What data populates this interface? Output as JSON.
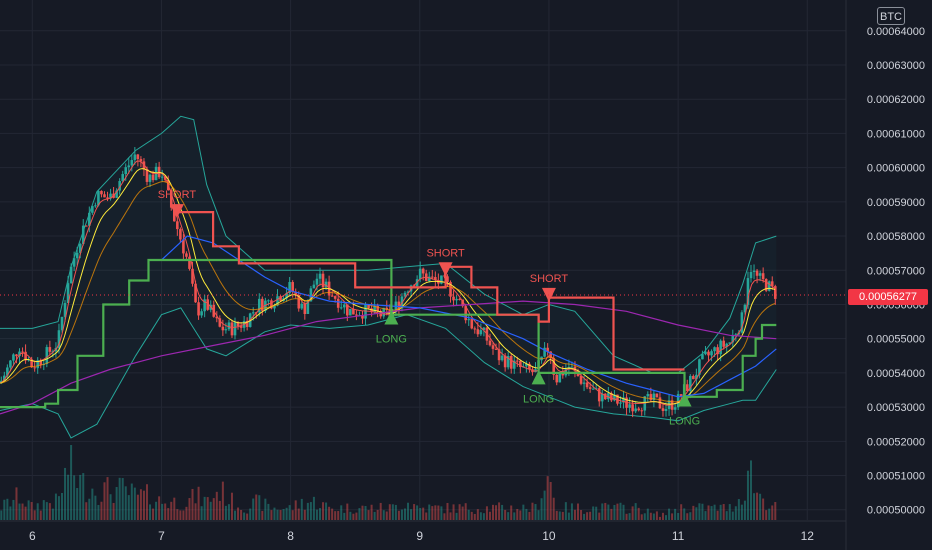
{
  "chart_data": {
    "type": "candlestick",
    "currency": "BTC",
    "last_price": "0.00056277",
    "y_ticks": [
      "0.00064000",
      "0.00063000",
      "0.00062000",
      "0.00061000",
      "0.00060000",
      "0.00059000",
      "0.00058000",
      "0.00057000",
      "0.00056000",
      "0.00055000",
      "0.00054000",
      "0.00053000",
      "0.00052000",
      "0.00051000",
      "0.00050000"
    ],
    "x_ticks": [
      "6",
      "7",
      "8",
      "9",
      "10",
      "11",
      "12"
    ],
    "ylim": [
      0.000497,
      0.000649
    ],
    "xlim": [
      5.75,
      12.3
    ],
    "annotations": [
      {
        "label": "SHORT",
        "kind": "short",
        "x": 7.12,
        "y": 0.000587
      },
      {
        "label": "LONG",
        "kind": "long",
        "x": 8.78,
        "y": 0.0005565
      },
      {
        "label": "SHORT",
        "kind": "short",
        "x": 9.2,
        "y": 0.00057
      },
      {
        "label": "LONG",
        "kind": "long",
        "x": 9.92,
        "y": 0.000539
      },
      {
        "label": "SHORT",
        "kind": "short",
        "x": 10.0,
        "y": 0.0005625
      },
      {
        "label": "LONG",
        "kind": "long",
        "x": 11.05,
        "y": 0.0005325
      }
    ],
    "series": [
      {
        "kind": "close",
        "values": [
          [
            5.75,
            0.000537
          ],
          [
            5.9,
            0.000548
          ],
          [
            6.0,
            0.000542
          ],
          [
            6.1,
            0.000545
          ],
          [
            6.2,
            0.000549
          ],
          [
            6.28,
            0.000568
          ],
          [
            6.38,
            0.000581
          ],
          [
            6.5,
            0.000592
          ],
          [
            6.6,
            0.000591
          ],
          [
            6.7,
            0.000598
          ],
          [
            6.8,
            0.000604
          ],
          [
            6.9,
            0.000597
          ],
          [
            7.0,
            0.000599
          ],
          [
            7.1,
            0.000585
          ],
          [
            7.2,
            0.000573
          ],
          [
            7.27,
            0.000558
          ],
          [
            7.35,
            0.00056
          ],
          [
            7.45,
            0.000553
          ],
          [
            7.55,
            0.000553
          ],
          [
            7.65,
            0.000555
          ],
          [
            7.75,
            0.00056
          ],
          [
            7.85,
            0.000561
          ],
          [
            8.0,
            0.000565
          ],
          [
            8.1,
            0.000558
          ],
          [
            8.2,
            0.000568
          ],
          [
            8.3,
            0.000564
          ],
          [
            8.45,
            0.000558
          ],
          [
            8.6,
            0.000558
          ],
          [
            8.7,
            0.000557
          ],
          [
            8.78,
            0.000557
          ],
          [
            8.9,
            0.000565
          ],
          [
            9.0,
            0.000569
          ],
          [
            9.1,
            0.000567
          ],
          [
            9.2,
            0.000566
          ],
          [
            9.3,
            0.000561
          ],
          [
            9.4,
            0.000554
          ],
          [
            9.5,
            0.000551
          ],
          [
            9.6,
            0.000545
          ],
          [
            9.7,
            0.000543
          ],
          [
            9.8,
            0.000541
          ],
          [
            9.9,
            0.00054
          ],
          [
            10.0,
            0.000548
          ],
          [
            10.05,
            0.000538
          ],
          [
            10.15,
            0.000542
          ],
          [
            10.3,
            0.000536
          ],
          [
            10.4,
            0.000533
          ],
          [
            10.5,
            0.000532
          ],
          [
            10.6,
            0.000531
          ],
          [
            10.7,
            0.000531
          ],
          [
            10.8,
            0.000532
          ],
          [
            10.9,
            0.00053
          ],
          [
            11.0,
            0.000532
          ],
          [
            11.1,
            0.000538
          ],
          [
            11.2,
            0.000544
          ],
          [
            11.3,
            0.000547
          ],
          [
            11.4,
            0.000549
          ],
          [
            11.5,
            0.000556
          ],
          [
            11.55,
            0.000572
          ],
          [
            11.6,
            0.000568
          ],
          [
            11.68,
            0.000566
          ],
          [
            11.76,
            0.000563
          ]
        ]
      },
      {
        "kind": "volume",
        "values": [
          [
            5.75,
            2
          ],
          [
            5.9,
            4
          ],
          [
            6.0,
            2
          ],
          [
            6.1,
            3
          ],
          [
            6.2,
            3
          ],
          [
            6.28,
            9
          ],
          [
            6.38,
            6
          ],
          [
            6.5,
            5
          ],
          [
            6.6,
            5
          ],
          [
            6.7,
            5
          ],
          [
            6.8,
            4
          ],
          [
            6.9,
            4
          ],
          [
            7.0,
            3
          ],
          [
            7.1,
            3
          ],
          [
            7.2,
            3
          ],
          [
            7.27,
            4
          ],
          [
            7.35,
            3
          ],
          [
            7.45,
            5
          ],
          [
            7.55,
            3
          ],
          [
            7.65,
            2
          ],
          [
            7.75,
            3
          ],
          [
            7.85,
            2
          ],
          [
            8.0,
            2
          ],
          [
            8.1,
            3
          ],
          [
            8.2,
            3
          ],
          [
            8.3,
            2
          ],
          [
            8.45,
            2
          ],
          [
            8.6,
            2
          ],
          [
            8.7,
            2
          ],
          [
            8.78,
            2
          ],
          [
            8.9,
            3
          ],
          [
            9.0,
            2
          ],
          [
            9.1,
            2
          ],
          [
            9.2,
            2
          ],
          [
            9.3,
            2
          ],
          [
            9.4,
            2
          ],
          [
            9.5,
            2
          ],
          [
            9.6,
            2
          ],
          [
            9.7,
            2
          ],
          [
            9.8,
            2
          ],
          [
            9.9,
            2
          ],
          [
            10.0,
            8
          ],
          [
            10.05,
            2
          ],
          [
            10.15,
            2
          ],
          [
            10.3,
            2
          ],
          [
            10.4,
            2
          ],
          [
            10.5,
            2
          ],
          [
            10.6,
            2
          ],
          [
            10.7,
            2
          ],
          [
            10.8,
            1
          ],
          [
            10.9,
            1
          ],
          [
            11.0,
            2
          ],
          [
            11.1,
            2
          ],
          [
            11.2,
            2
          ],
          [
            11.3,
            2
          ],
          [
            11.4,
            2
          ],
          [
            11.5,
            4
          ],
          [
            11.55,
            9
          ],
          [
            11.6,
            5
          ],
          [
            11.68,
            3
          ],
          [
            11.76,
            2
          ]
        ]
      },
      {
        "kind": "bb_upper",
        "color": "#26a69a",
        "values": [
          [
            5.75,
            0.000553
          ],
          [
            6.0,
            0.000553
          ],
          [
            6.2,
            0.000555
          ],
          [
            6.3,
            0.000571
          ],
          [
            6.5,
            0.000593
          ],
          [
            6.8,
            0.000605
          ],
          [
            7.0,
            0.00061
          ],
          [
            7.15,
            0.000615
          ],
          [
            7.25,
            0.000614
          ],
          [
            7.35,
            0.000595
          ],
          [
            7.5,
            0.00058
          ],
          [
            7.8,
            0.00057
          ],
          [
            8.0,
            0.00057
          ],
          [
            8.3,
            0.00057
          ],
          [
            8.6,
            0.00057
          ],
          [
            8.9,
            0.000571
          ],
          [
            9.2,
            0.000572
          ],
          [
            9.5,
            0.000563
          ],
          [
            9.8,
            0.000557
          ],
          [
            10.0,
            0.00056
          ],
          [
            10.2,
            0.000558
          ],
          [
            10.5,
            0.000545
          ],
          [
            10.8,
            0.00054
          ],
          [
            11.0,
            0.00054
          ],
          [
            11.2,
            0.000546
          ],
          [
            11.4,
            0.000556
          ],
          [
            11.5,
            0.000566
          ],
          [
            11.6,
            0.000578
          ],
          [
            11.76,
            0.00058
          ]
        ]
      },
      {
        "kind": "bb_lower",
        "color": "#26a69a",
        "values": [
          [
            5.75,
            0.000529
          ],
          [
            6.0,
            0.000531
          ],
          [
            6.2,
            0.000528
          ],
          [
            6.3,
            0.000521
          ],
          [
            6.5,
            0.000525
          ],
          [
            6.8,
            0.000545
          ],
          [
            7.0,
            0.000557
          ],
          [
            7.15,
            0.000559
          ],
          [
            7.25,
            0.000553
          ],
          [
            7.35,
            0.000547
          ],
          [
            7.5,
            0.000545
          ],
          [
            7.8,
            0.000552
          ],
          [
            8.0,
            0.000554
          ],
          [
            8.3,
            0.000553
          ],
          [
            8.6,
            0.000554
          ],
          [
            8.9,
            0.000557
          ],
          [
            9.2,
            0.000553
          ],
          [
            9.5,
            0.000543
          ],
          [
            9.8,
            0.000536
          ],
          [
            10.0,
            0.000533
          ],
          [
            10.2,
            0.00053
          ],
          [
            10.5,
            0.000528
          ],
          [
            10.8,
            0.000527
          ],
          [
            11.0,
            0.000526
          ],
          [
            11.2,
            0.000529
          ],
          [
            11.4,
            0.000531
          ],
          [
            11.5,
            0.000532
          ],
          [
            11.6,
            0.000532
          ],
          [
            11.76,
            0.000541
          ]
        ]
      },
      {
        "kind": "ma_slow",
        "color": "#9c27b0",
        "values": [
          [
            5.75,
            0.000528
          ],
          [
            6.0,
            0.000531
          ],
          [
            6.3,
            0.000537
          ],
          [
            6.6,
            0.000541
          ],
          [
            7.0,
            0.000545
          ],
          [
            7.4,
            0.000548
          ],
          [
            7.8,
            0.000551
          ],
          [
            8.2,
            0.000555
          ],
          [
            8.6,
            0.000557
          ],
          [
            9.0,
            0.000559
          ],
          [
            9.4,
            0.00056
          ],
          [
            9.8,
            0.000561
          ],
          [
            10.2,
            0.00056
          ],
          [
            10.6,
            0.000558
          ],
          [
            11.0,
            0.000554
          ],
          [
            11.4,
            0.000551
          ],
          [
            11.76,
            0.00055
          ]
        ]
      },
      {
        "kind": "ma_mid",
        "color": "#2962ff",
        "values": [
          [
            7.0,
            0.000573
          ],
          [
            7.2,
            0.00058
          ],
          [
            7.4,
            0.000578
          ],
          [
            7.6,
            0.000573
          ],
          [
            7.8,
            0.000568
          ],
          [
            8.0,
            0.000564
          ],
          [
            8.3,
            0.000561
          ],
          [
            8.6,
            0.00056
          ],
          [
            9.0,
            0.000559
          ],
          [
            9.4,
            0.000556
          ],
          [
            9.8,
            0.00055
          ],
          [
            10.0,
            0.000546
          ],
          [
            10.3,
            0.000541
          ],
          [
            10.6,
            0.000537
          ],
          [
            10.8,
            0.000535
          ],
          [
            11.0,
            0.000533
          ],
          [
            11.2,
            0.000534
          ],
          [
            11.4,
            0.000538
          ],
          [
            11.6,
            0.000542
          ],
          [
            11.76,
            0.000547
          ]
        ]
      },
      {
        "kind": "stop_long",
        "color": "#4caf50",
        "values": [
          [
            5.75,
            0.00053
          ],
          [
            6.1,
            0.000531
          ],
          [
            6.2,
            0.000535
          ],
          [
            6.35,
            0.000545
          ],
          [
            6.55,
            0.00056
          ],
          [
            6.75,
            0.000567
          ],
          [
            6.9,
            0.000573
          ],
          [
            7.05,
            0.000573
          ],
          [
            7.12,
            0.000573
          ],
          [
            8.78,
            0.000557
          ],
          [
            8.79,
            0.000557
          ],
          [
            9.92,
            0.00054
          ],
          [
            10.0,
            0.00054
          ],
          [
            11.05,
            0.000533
          ],
          [
            11.3,
            0.000535
          ],
          [
            11.5,
            0.000545
          ],
          [
            11.6,
            0.00055
          ],
          [
            11.65,
            0.000554
          ],
          [
            11.76,
            0.000554
          ]
        ]
      },
      {
        "kind": "stop_short",
        "color": "#ef5350",
        "values": [
          [
            7.12,
            0.000587
          ],
          [
            7.4,
            0.000577
          ],
          [
            7.6,
            0.000572
          ],
          [
            8.2,
            0.000572
          ],
          [
            8.5,
            0.000565
          ],
          [
            8.78,
            0.000565
          ],
          [
            9.2,
            0.000571
          ],
          [
            9.4,
            0.000565
          ],
          [
            9.6,
            0.000557
          ],
          [
            9.92,
            0.000555
          ],
          [
            10.0,
            0.000562
          ],
          [
            10.2,
            0.000562
          ],
          [
            10.5,
            0.000541
          ],
          [
            11.05,
            0.000541
          ]
        ]
      }
    ]
  }
}
